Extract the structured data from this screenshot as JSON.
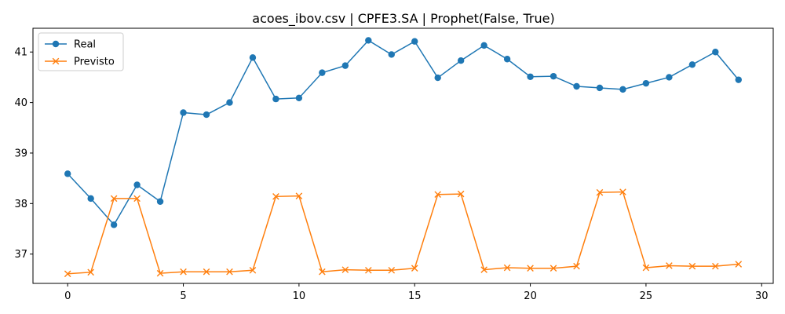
{
  "chart_data": {
    "type": "line",
    "title": "acoes_ibov.csv | CPFE3.SA | Prophet(False, True)",
    "xlabel": "",
    "ylabel": "",
    "xlim": [
      -1.5,
      30.5
    ],
    "ylim": [
      36.42,
      41.47
    ],
    "x_ticks": [
      0,
      5,
      10,
      15,
      20,
      25,
      30
    ],
    "y_ticks": [
      37,
      38,
      39,
      40,
      41
    ],
    "grid": false,
    "legend_position": "upper-left",
    "x": [
      0,
      1,
      2,
      3,
      4,
      5,
      6,
      7,
      8,
      9,
      10,
      11,
      12,
      13,
      14,
      15,
      16,
      17,
      18,
      19,
      20,
      21,
      22,
      23,
      24,
      25,
      26,
      27,
      28,
      29
    ],
    "series": [
      {
        "name": "Real",
        "color": "#1f77b4",
        "marker": "circle",
        "values": [
          38.59,
          38.1,
          37.58,
          38.37,
          38.04,
          39.8,
          39.76,
          40.0,
          40.89,
          40.07,
          40.09,
          40.59,
          40.73,
          41.23,
          40.95,
          41.21,
          40.49,
          40.83,
          41.13,
          40.86,
          40.51,
          40.52,
          40.32,
          40.29,
          40.26,
          40.38,
          40.5,
          40.75,
          41.0,
          40.45
        ]
      },
      {
        "name": "Previsto",
        "color": "#ff7f0e",
        "marker": "x",
        "values": [
          36.61,
          36.64,
          38.1,
          38.1,
          36.62,
          36.65,
          36.65,
          36.65,
          36.68,
          38.14,
          38.15,
          36.65,
          36.69,
          36.68,
          36.68,
          36.72,
          38.18,
          38.19,
          36.69,
          36.73,
          36.72,
          36.72,
          36.76,
          38.22,
          38.23,
          36.73,
          36.77,
          36.76,
          36.76,
          36.8
        ]
      }
    ]
  }
}
